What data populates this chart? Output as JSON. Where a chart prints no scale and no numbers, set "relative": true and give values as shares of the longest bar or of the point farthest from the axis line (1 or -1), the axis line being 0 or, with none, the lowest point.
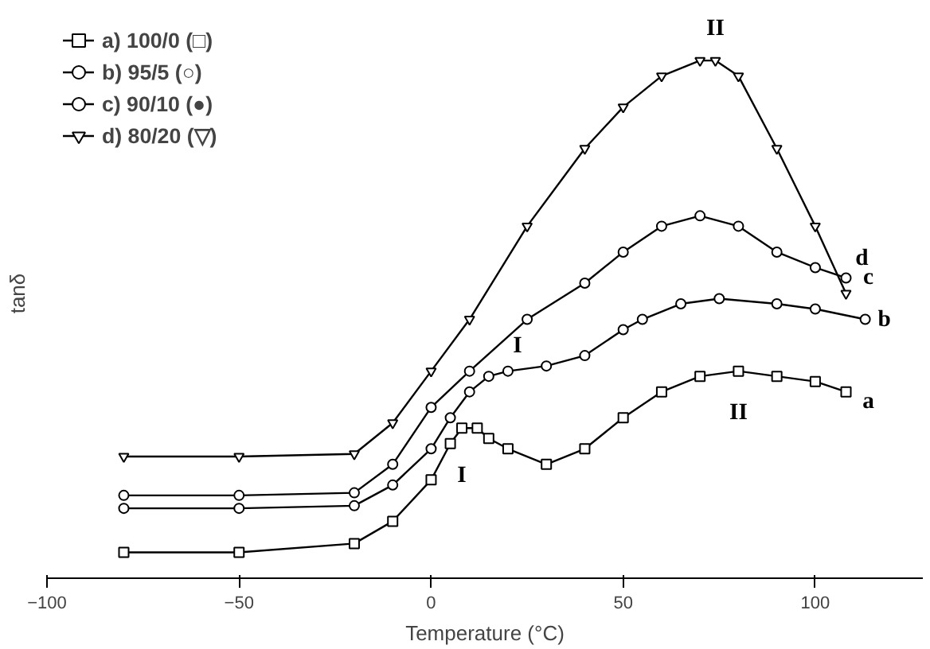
{
  "chart_data": {
    "type": "line",
    "relative": true,
    "xlabel": "Temperature (°C)",
    "ylabel": "tanδ",
    "xlim": [
      -100,
      128
    ],
    "xticks": [
      -100,
      -50,
      0,
      50,
      100
    ],
    "legend": "top left",
    "grid": false,
    "series": [
      {
        "name": "a) 100/0 (□)",
        "color": "#000000",
        "marker": "square",
        "x": [
          -80,
          -50,
          -20,
          -10,
          0,
          5,
          8,
          12,
          15,
          20,
          30,
          40,
          50,
          60,
          70,
          80,
          90,
          100,
          108
        ],
        "values": [
          0.05,
          0.05,
          0.067,
          0.11,
          0.19,
          0.26,
          0.29,
          0.29,
          0.27,
          0.25,
          0.22,
          0.25,
          0.31,
          0.36,
          0.39,
          0.4,
          0.39,
          0.38,
          0.36
        ]
      },
      {
        "name": "b) 95/5 (○)",
        "color": "#000000",
        "marker": "circle",
        "x": [
          -80,
          -50,
          -20,
          -10,
          0,
          5,
          10,
          15,
          20,
          30,
          40,
          50,
          55,
          65,
          75,
          90,
          100,
          113
        ],
        "values": [
          0.135,
          0.135,
          0.14,
          0.18,
          0.25,
          0.31,
          0.36,
          0.39,
          0.4,
          0.41,
          0.43,
          0.48,
          0.5,
          0.53,
          0.54,
          0.53,
          0.52,
          0.5
        ]
      },
      {
        "name": "c) 90/10 (●)",
        "color": "#000000",
        "marker": "circle",
        "x": [
          -80,
          -50,
          -20,
          -10,
          0,
          10,
          25,
          40,
          50,
          60,
          70,
          80,
          90,
          100,
          108
        ],
        "values": [
          0.16,
          0.16,
          0.165,
          0.22,
          0.33,
          0.4,
          0.5,
          0.57,
          0.63,
          0.68,
          0.7,
          0.68,
          0.63,
          0.6,
          0.58
        ]
      },
      {
        "name": "d) 80/20 (▽)",
        "color": "#000000",
        "marker": "triangle",
        "x": [
          -80,
          -50,
          -20,
          -10,
          0,
          10,
          25,
          40,
          50,
          60,
          70,
          74,
          80,
          90,
          100,
          108
        ],
        "values": [
          0.235,
          0.235,
          0.24,
          0.3,
          0.4,
          0.5,
          0.68,
          0.83,
          0.91,
          0.97,
          1.0,
          1.0,
          0.97,
          0.83,
          0.68,
          0.55
        ]
      }
    ],
    "annotations": [
      {
        "text": "II",
        "x": 74,
        "y": 1.0
      },
      {
        "text": "d",
        "x": 108,
        "y": 0.55
      },
      {
        "text": "c",
        "x": 108,
        "y": 0.58
      },
      {
        "text": "b",
        "x": 113,
        "y": 0.5
      },
      {
        "text": "a",
        "x": 108,
        "y": 0.36
      },
      {
        "text": "I",
        "x": 20,
        "y": 0.4
      },
      {
        "text": "I",
        "x": 8,
        "y": 0.29
      },
      {
        "text": "II",
        "x": 80,
        "y": 0.4
      }
    ]
  }
}
